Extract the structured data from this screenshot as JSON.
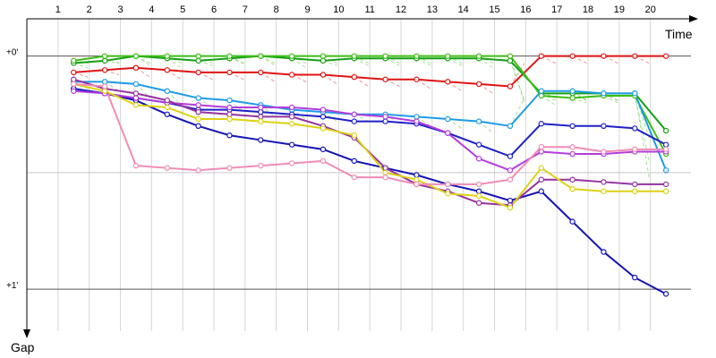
{
  "chart_data": {
    "type": "line",
    "xlabel": "Time",
    "ylabel": "Gap",
    "x": [
      1,
      2,
      3,
      4,
      5,
      6,
      7,
      8,
      9,
      10,
      11,
      12,
      13,
      14,
      15,
      16,
      17,
      18,
      19,
      20
    ],
    "x_range": [
      0,
      21.3
    ],
    "y_ticks": [
      {
        "value": 0,
        "label": "+0'"
      },
      {
        "value": 0.5,
        "label": ""
      },
      {
        "value": 1,
        "label": "+1'"
      }
    ],
    "y_range": [
      -0.16,
      1.18
    ],
    "grid": true,
    "series": [
      {
        "color": "#e01414",
        "values": [
          0.07,
          0.06,
          0.05,
          0.06,
          0.07,
          0.07,
          0.07,
          0.08,
          0.08,
          0.09,
          0.1,
          0.1,
          0.11,
          0.12,
          0.13,
          0.0,
          0.0,
          0.0,
          0.0,
          0.0
        ]
      },
      {
        "color": "#14a014",
        "values": [
          0.03,
          0.02,
          0.0,
          0.01,
          0.02,
          0.01,
          0.0,
          0.01,
          0.02,
          0.01,
          0.01,
          0.01,
          0.01,
          0.01,
          0.02,
          0.16,
          0.16,
          0.16,
          0.16,
          0.32
        ]
      },
      {
        "color": "#3cbe14",
        "values": [
          0.02,
          0.0,
          0.0,
          0.0,
          0.0,
          0.0,
          0.0,
          0.0,
          0.0,
          0.0,
          0.0,
          0.0,
          0.0,
          0.0,
          0.0,
          0.17,
          0.18,
          0.17,
          0.17,
          0.42
        ]
      },
      {
        "color": "#1e9be8",
        "values": [
          0.11,
          0.11,
          0.12,
          0.15,
          0.18,
          0.19,
          0.21,
          0.23,
          0.24,
          0.25,
          0.25,
          0.26,
          0.27,
          0.28,
          0.3,
          0.15,
          0.15,
          0.16,
          0.16,
          0.49
        ]
      },
      {
        "color": "#1414b4",
        "values": [
          0.14,
          0.16,
          0.19,
          0.25,
          0.3,
          0.34,
          0.36,
          0.38,
          0.4,
          0.45,
          0.48,
          0.51,
          0.55,
          0.58,
          0.62,
          0.58,
          0.71,
          0.84,
          0.95,
          1.02
        ]
      },
      {
        "color": "#1f1fc8",
        "values": [
          0.14,
          0.16,
          0.18,
          0.2,
          0.23,
          0.23,
          0.24,
          0.25,
          0.26,
          0.28,
          0.28,
          0.29,
          0.33,
          0.38,
          0.43,
          0.29,
          0.3,
          0.3,
          0.31,
          0.38
        ]
      },
      {
        "color": "#b43cdc",
        "values": [
          0.15,
          0.16,
          0.18,
          0.2,
          0.21,
          0.22,
          0.22,
          0.22,
          0.23,
          0.25,
          0.26,
          0.28,
          0.33,
          0.44,
          0.49,
          0.41,
          0.42,
          0.42,
          0.41,
          0.41
        ]
      },
      {
        "color": "#9632a0",
        "values": [
          0.1,
          0.14,
          0.16,
          0.19,
          0.24,
          0.25,
          0.26,
          0.26,
          0.3,
          0.35,
          0.48,
          0.55,
          0.58,
          0.63,
          0.64,
          0.53,
          0.53,
          0.54,
          0.55,
          0.55
        ]
      },
      {
        "color": "#dcd214",
        "values": [
          0.12,
          0.15,
          0.21,
          0.22,
          0.27,
          0.27,
          0.28,
          0.29,
          0.31,
          0.34,
          0.5,
          0.53,
          0.59,
          0.6,
          0.65,
          0.48,
          0.57,
          0.58,
          0.58,
          0.58
        ]
      },
      {
        "color": "#f08cb4",
        "values": [
          0.12,
          0.13,
          0.47,
          0.48,
          0.49,
          0.48,
          0.47,
          0.46,
          0.45,
          0.52,
          0.52,
          0.55,
          0.55,
          0.55,
          0.53,
          0.39,
          0.39,
          0.41,
          0.4,
          0.4
        ]
      }
    ]
  }
}
